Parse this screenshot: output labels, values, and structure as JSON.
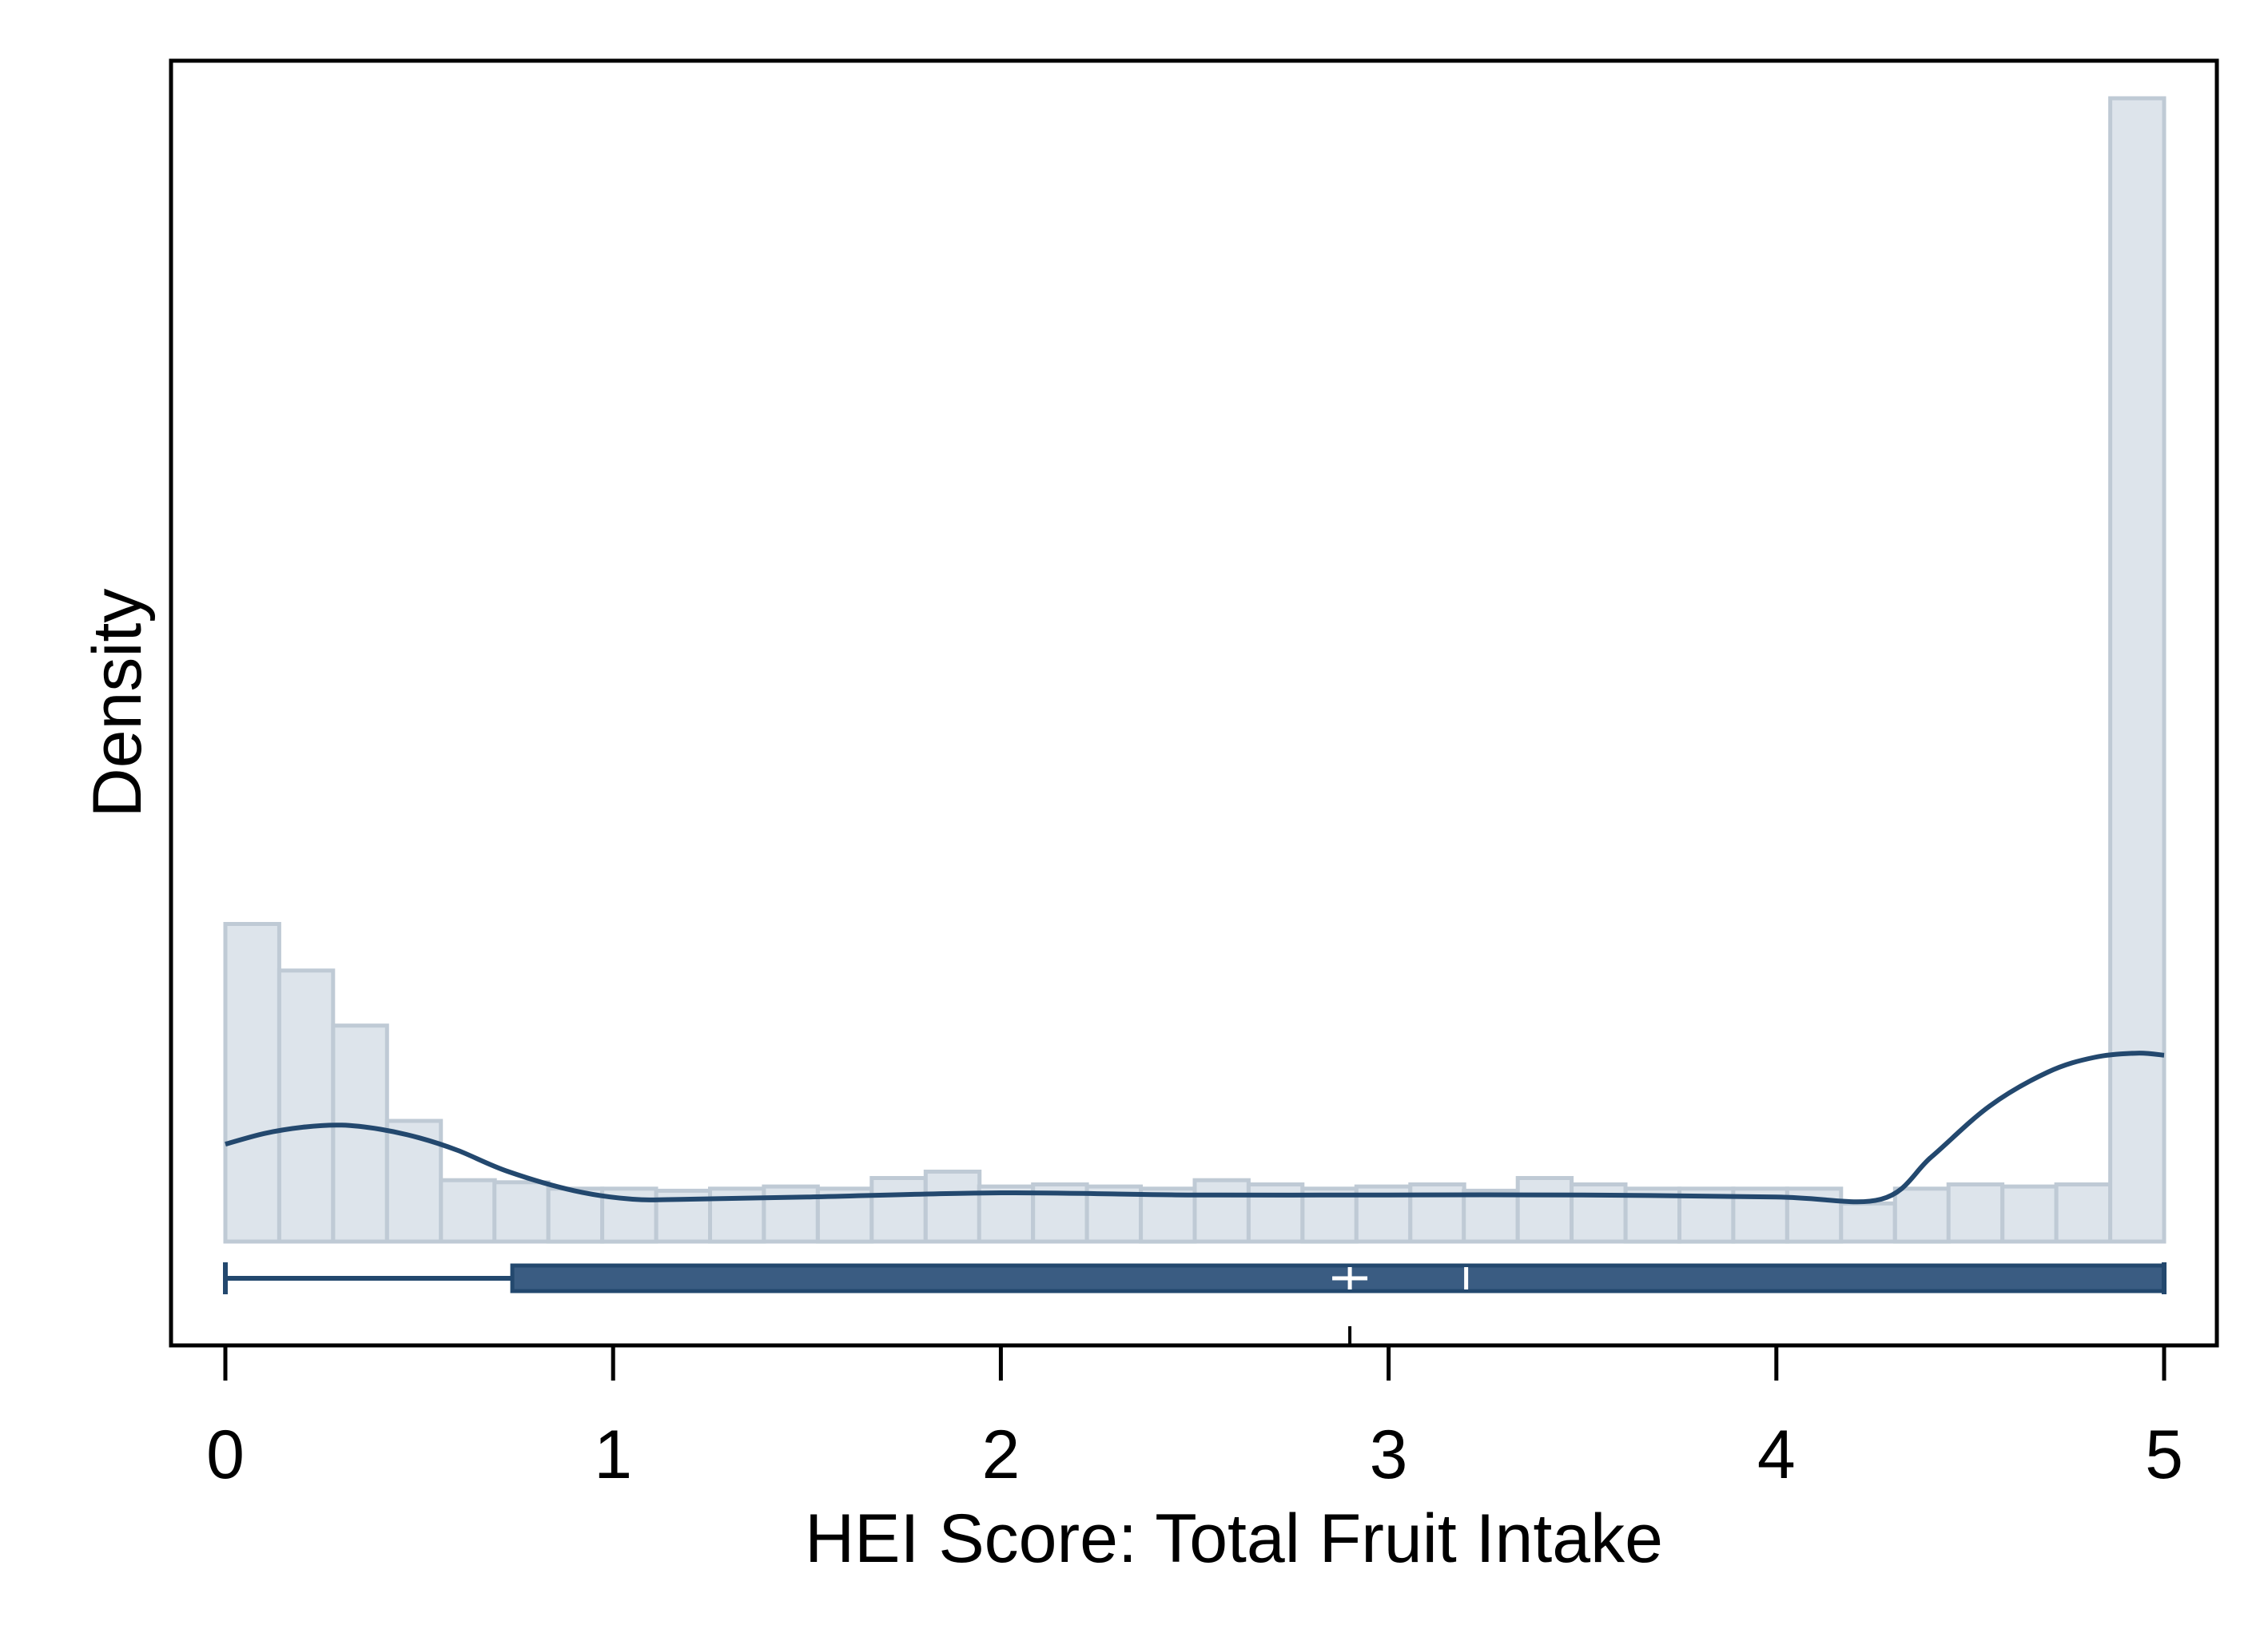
{
  "chart_data": {
    "type": "histogram",
    "xlabel": "HEI Score: Total Fruit Intake",
    "ylabel": "Density",
    "xlim": [
      0,
      5
    ],
    "x_ticks": [
      0,
      1,
      2,
      3,
      4,
      5
    ],
    "x_tick_labels": [
      "0",
      "1",
      "2",
      "3",
      "4",
      "5"
    ],
    "y_ticks_shown": false,
    "grid": false,
    "bin_width": 0.1389,
    "bins": [
      {
        "start": 0.0,
        "value": 1.5
      },
      {
        "start": 0.139,
        "value": 1.28
      },
      {
        "start": 0.278,
        "value": 1.02
      },
      {
        "start": 0.417,
        "value": 0.57
      },
      {
        "start": 0.556,
        "value": 0.29
      },
      {
        "start": 0.694,
        "value": 0.28
      },
      {
        "start": 0.833,
        "value": 0.25
      },
      {
        "start": 0.972,
        "value": 0.25
      },
      {
        "start": 1.111,
        "value": 0.24
      },
      {
        "start": 1.25,
        "value": 0.25
      },
      {
        "start": 1.389,
        "value": 0.26
      },
      {
        "start": 1.528,
        "value": 0.25
      },
      {
        "start": 1.667,
        "value": 0.3
      },
      {
        "start": 1.806,
        "value": 0.33
      },
      {
        "start": 1.944,
        "value": 0.26
      },
      {
        "start": 2.083,
        "value": 0.27
      },
      {
        "start": 2.222,
        "value": 0.26
      },
      {
        "start": 2.361,
        "value": 0.25
      },
      {
        "start": 2.5,
        "value": 0.29
      },
      {
        "start": 2.639,
        "value": 0.27
      },
      {
        "start": 2.778,
        "value": 0.25
      },
      {
        "start": 2.917,
        "value": 0.26
      },
      {
        "start": 3.056,
        "value": 0.27
      },
      {
        "start": 3.194,
        "value": 0.24
      },
      {
        "start": 3.333,
        "value": 0.3
      },
      {
        "start": 3.472,
        "value": 0.27
      },
      {
        "start": 3.611,
        "value": 0.25
      },
      {
        "start": 3.75,
        "value": 0.25
      },
      {
        "start": 3.889,
        "value": 0.25
      },
      {
        "start": 4.028,
        "value": 0.25
      },
      {
        "start": 4.167,
        "value": 0.18
      },
      {
        "start": 4.306,
        "value": 0.25
      },
      {
        "start": 4.444,
        "value": 0.27
      },
      {
        "start": 4.583,
        "value": 0.26
      },
      {
        "start": 4.722,
        "value": 0.27
      },
      {
        "start": 4.861,
        "value": 5.4
      }
    ],
    "density_curve": {
      "x": [
        0.0,
        0.1,
        0.2,
        0.3,
        0.4,
        0.5,
        0.6,
        0.73,
        0.9,
        1.05,
        1.2,
        1.5,
        2.0,
        2.5,
        3.0,
        3.5,
        4.0,
        4.27,
        4.4,
        4.55,
        4.7,
        4.82,
        4.93,
        5.0
      ],
      "y": [
        0.46,
        0.51,
        0.54,
        0.55,
        0.53,
        0.49,
        0.43,
        0.33,
        0.24,
        0.2,
        0.2,
        0.21,
        0.23,
        0.22,
        0.22,
        0.22,
        0.21,
        0.2,
        0.4,
        0.64,
        0.8,
        0.87,
        0.89,
        0.88
      ]
    },
    "boxplot": {
      "min": 0.0,
      "q1": 0.74,
      "median": 3.2,
      "mean": 2.9,
      "q3": 5.0,
      "max": 5.0
    },
    "colors": {
      "bar_fill": "#dde4eb",
      "bar_stroke": "#bfcad5",
      "curve": "#23486e",
      "box_fill": "#3a5c82",
      "box_stroke": "#23486e",
      "marker": "#ffffff",
      "frame": "#000000"
    }
  }
}
